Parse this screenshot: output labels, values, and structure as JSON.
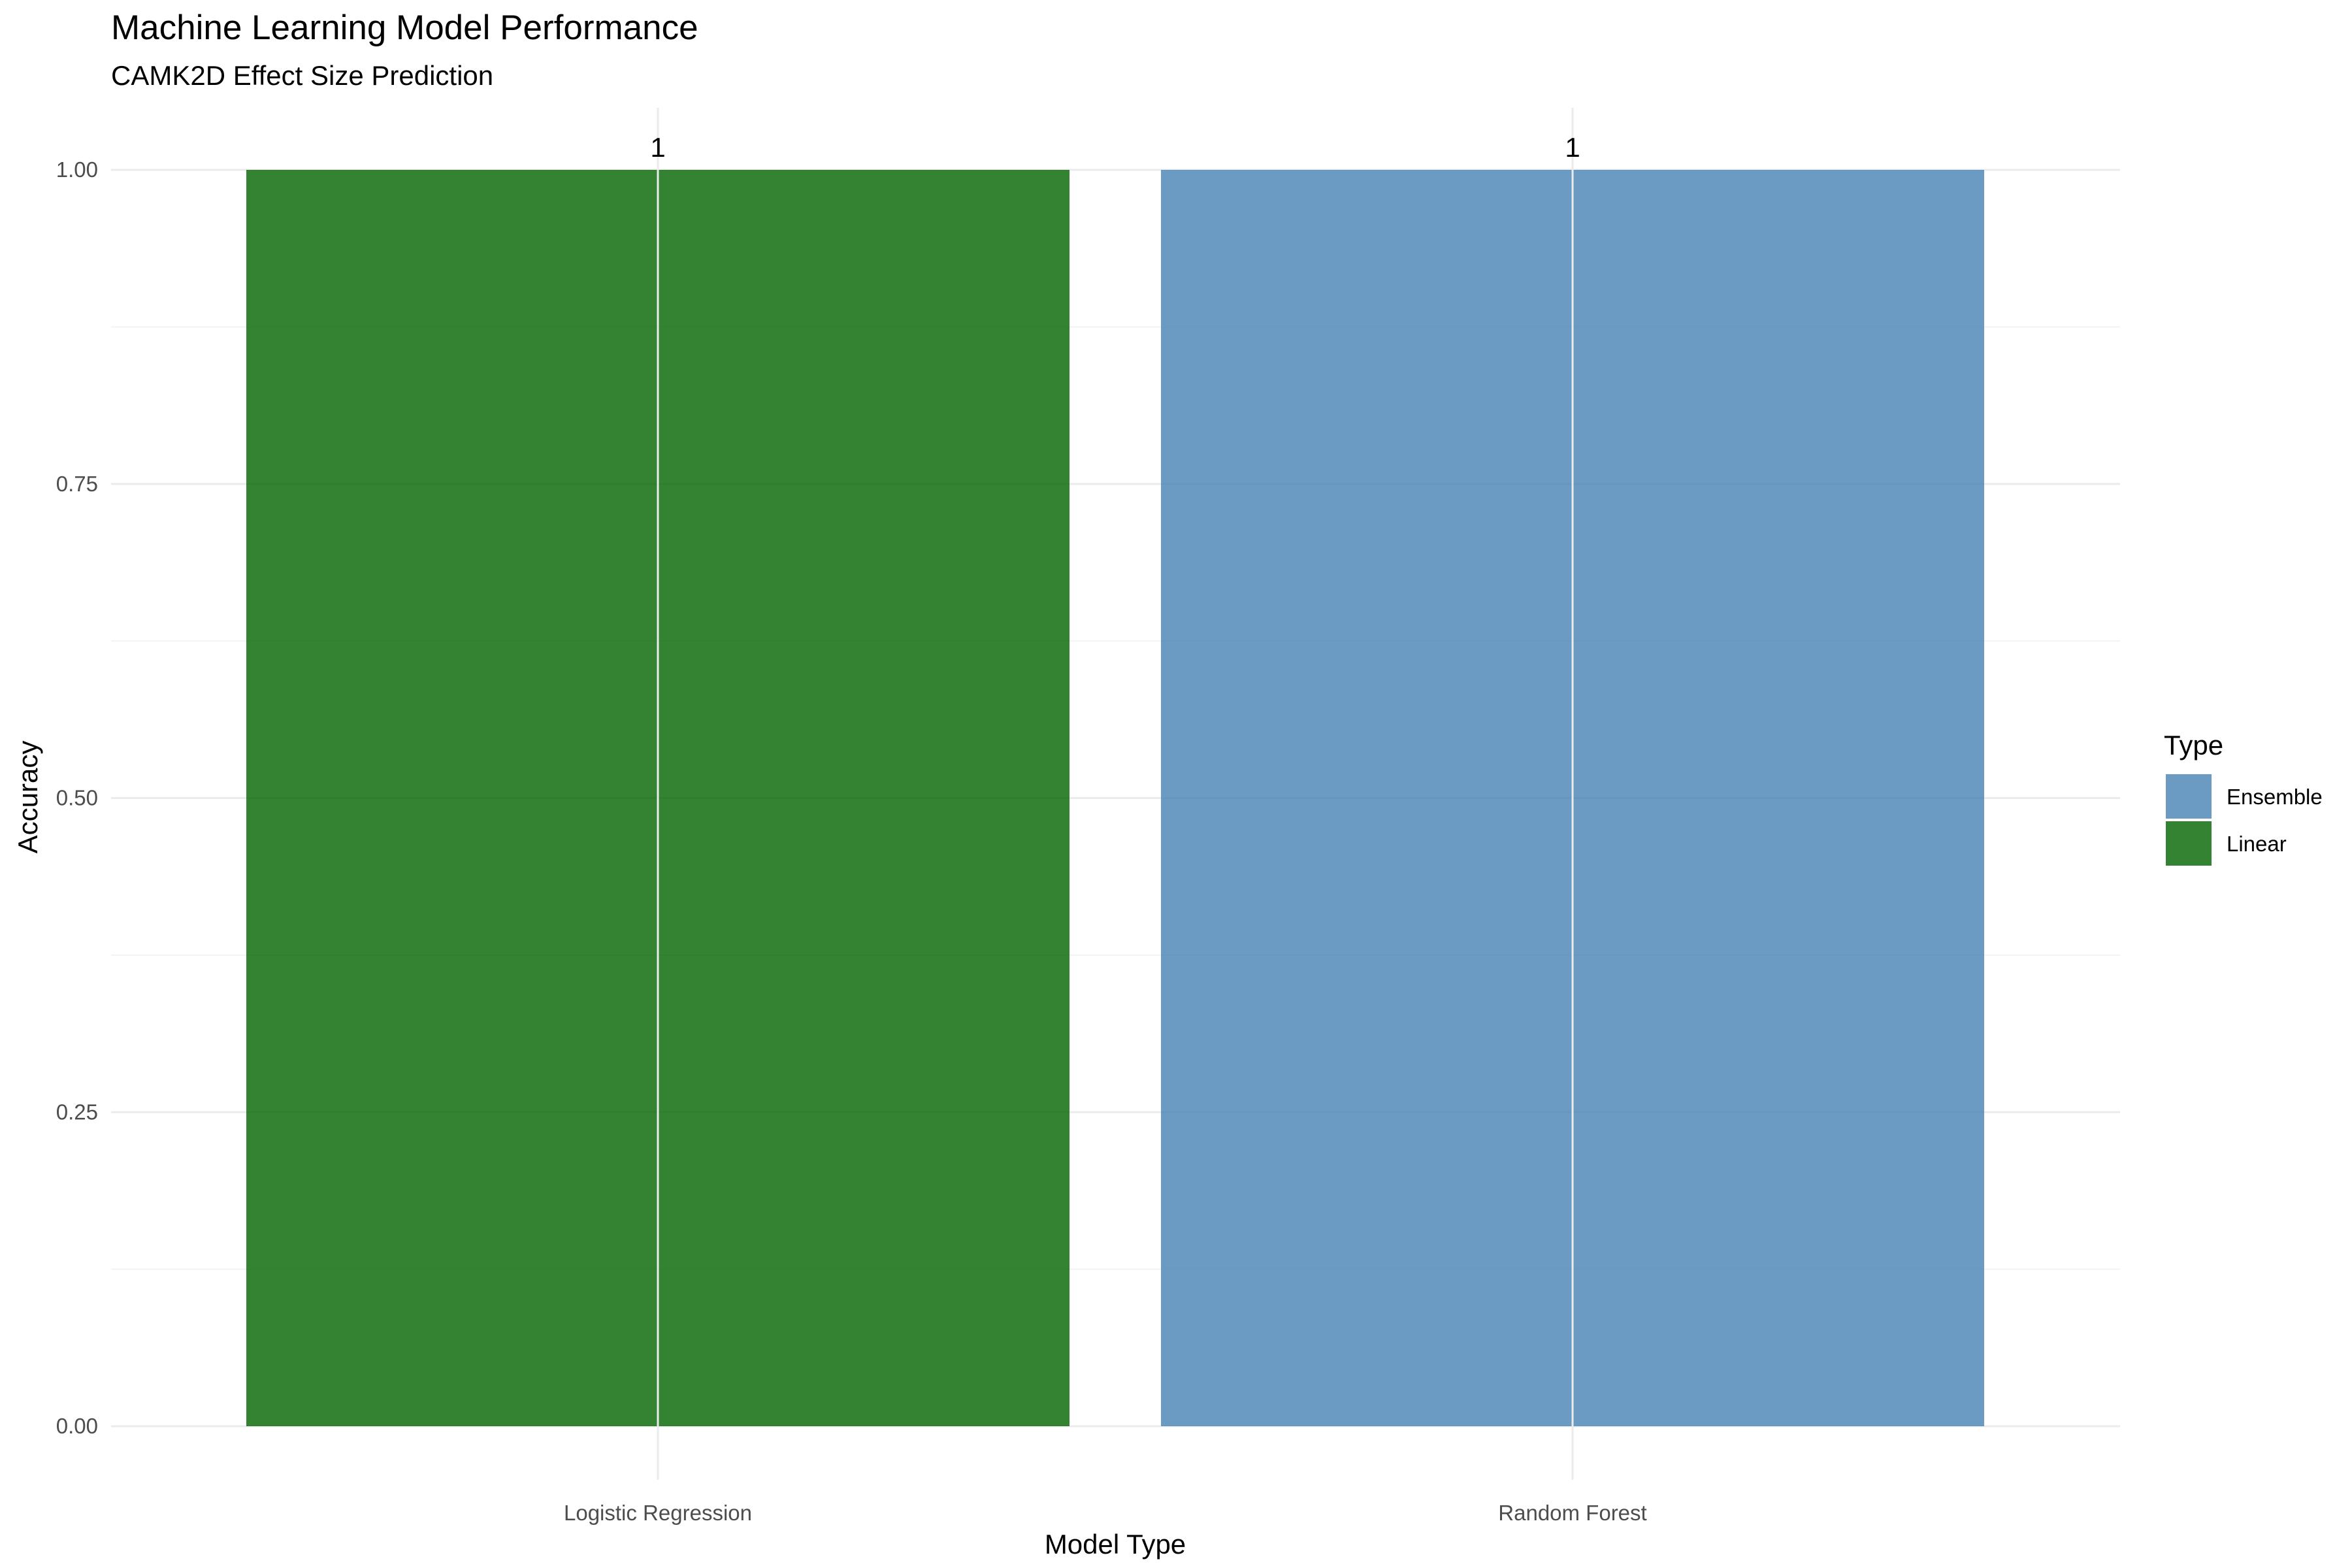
{
  "chart_data": {
    "type": "bar",
    "title": "Machine Learning Model Performance",
    "subtitle": "CAMK2D Effect Size Prediction",
    "xlabel": "Model Type",
    "ylabel": "Accuracy",
    "categories": [
      "Logistic Regression",
      "Random Forest"
    ],
    "values": [
      1,
      1
    ],
    "value_labels": [
      "1",
      "1"
    ],
    "types": [
      "Linear",
      "Ensemble"
    ],
    "ylim": [
      0,
      1
    ],
    "y_ticks": [
      0,
      0.25,
      0.5,
      0.75,
      1
    ],
    "y_tick_labels": [
      "0.00",
      "0.25",
      "0.50",
      "0.75",
      "1.00"
    ],
    "grid": true,
    "legend": {
      "title": "Type",
      "position": "right",
      "entries": [
        {
          "label": "Ensemble",
          "color": "#4682b4"
        },
        {
          "label": "Linear",
          "color": "#006400"
        }
      ]
    },
    "colors": {
      "Ensemble": "#4682b4",
      "Linear": "#006400"
    },
    "bar_opacity": 0.8
  }
}
